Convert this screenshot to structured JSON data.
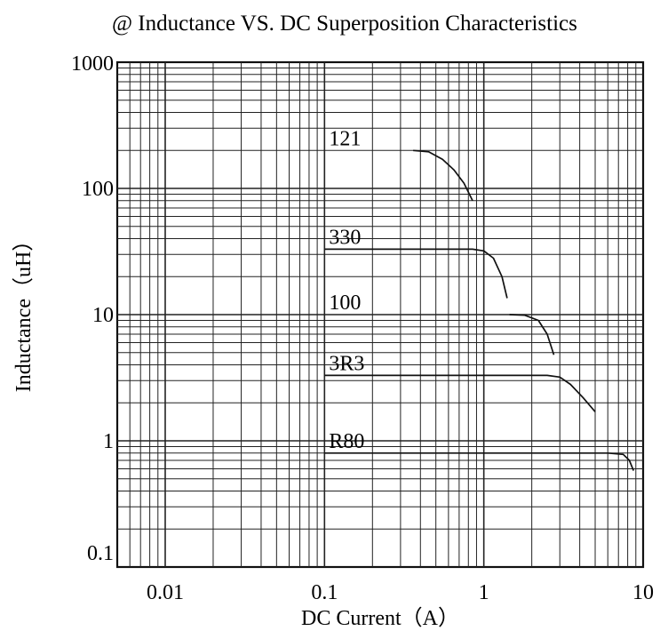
{
  "chart_data": {
    "type": "line",
    "title": "@ Inductance VS. DC Superposition Characteristics",
    "xlabel": "DC Current（A）",
    "ylabel": "Inductance（uH）",
    "x_scale": "log",
    "y_scale": "log",
    "xlim": [
      0.005,
      10
    ],
    "ylim": [
      0.1,
      1000
    ],
    "x_ticks": [
      {
        "value": 0.01,
        "label": "0.01"
      },
      {
        "value": 0.1,
        "label": "0.1"
      },
      {
        "value": 1,
        "label": "1"
      },
      {
        "value": 10,
        "label": "10"
      }
    ],
    "y_ticks": [
      {
        "value": 1000,
        "label": "1000"
      },
      {
        "value": 100,
        "label": "100"
      },
      {
        "value": 10,
        "label": "10"
      },
      {
        "value": 1,
        "label": "1"
      },
      {
        "value": 0.1,
        "label": "0.1"
      }
    ],
    "grid": true,
    "legend": "inline labels",
    "series": [
      {
        "name": "121",
        "label_at": [
          0.1,
          200
        ],
        "x": [
          0.36,
          0.45,
          0.55,
          0.65,
          0.75,
          0.85
        ],
        "y": [
          200,
          195,
          170,
          140,
          110,
          80
        ]
      },
      {
        "name": "330",
        "label_at": [
          0.1,
          33
        ],
        "x": [
          0.1,
          0.85,
          1.0,
          1.15,
          1.3,
          1.4
        ],
        "y": [
          33,
          33,
          32,
          28,
          20,
          13.5
        ]
      },
      {
        "name": "100",
        "label_at": [
          0.1,
          10
        ],
        "x": [
          1.45,
          1.8,
          2.2,
          2.5,
          2.75
        ],
        "y": [
          10,
          9.9,
          9.0,
          7.0,
          4.8
        ]
      },
      {
        "name": "3R3",
        "label_at": [
          0.1,
          3.3
        ],
        "x": [
          0.1,
          2.5,
          3.0,
          3.5,
          4.2,
          5.0
        ],
        "y": [
          3.3,
          3.3,
          3.2,
          2.8,
          2.2,
          1.7
        ]
      },
      {
        "name": "R80",
        "label_at": [
          0.1,
          0.8
        ],
        "x": [
          0.1,
          6.0,
          7.5,
          8.2,
          8.7
        ],
        "y": [
          0.8,
          0.8,
          0.78,
          0.7,
          0.58
        ]
      }
    ]
  }
}
